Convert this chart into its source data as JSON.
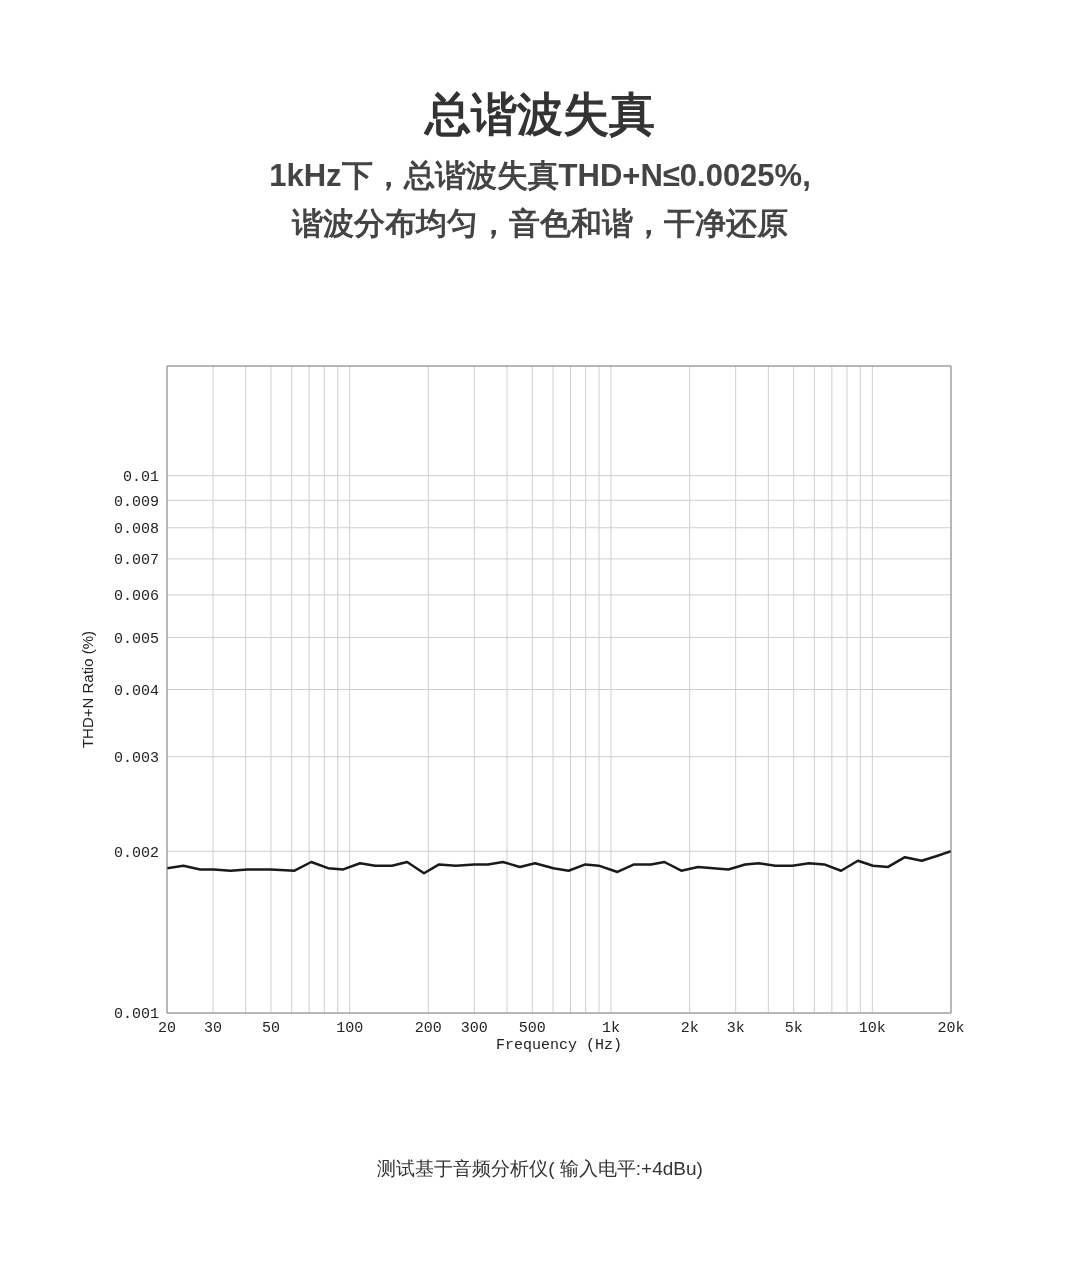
{
  "chart_data": {
    "type": "line",
    "title": "总谐波失真",
    "subtitle": "1kHz下，总谐波失真THD+N≤0.0025%,\n谐波分布均匀，音色和谐，干净还原",
    "xlabel": "Frequency (Hz)",
    "ylabel": "THD+N Ratio (%)",
    "log": "xy",
    "grid": true,
    "legend": false,
    "marker": "none",
    "line_style": "solid",
    "x": [
      20,
      23.1,
      26.8,
      30.2,
      35.0,
      40.6,
      50.0,
      61.5,
      71.3,
      82.7,
      94.5,
      109.6,
      125.3,
      145.2,
      165.9,
      192.5,
      219.9,
      255,
      300,
      338,
      386,
      448,
      512,
      602,
      688,
      798,
      898,
      1058,
      1226,
      1424,
      1601,
      1858,
      2154,
      2462,
      2812,
      3260,
      3671,
      4257,
      4942,
      5726,
      6546,
      7590,
      8806,
      10056,
      11490,
      13325,
      15456,
      17660,
      20000
    ],
    "series": [
      {
        "color": "#1a1a1a",
        "values": [
          0.00186,
          0.00188,
          0.00185,
          0.00185,
          0.00184,
          0.00185,
          0.00185,
          0.00184,
          0.00191,
          0.00186,
          0.00185,
          0.0019,
          0.00188,
          0.00188,
          0.00191,
          0.00182,
          0.00189,
          0.00188,
          0.00189,
          0.00189,
          0.00191,
          0.00187,
          0.0019,
          0.00186,
          0.00184,
          0.00189,
          0.00188,
          0.00183,
          0.00189,
          0.00189,
          0.00191,
          0.00184,
          0.00187,
          0.00186,
          0.00185,
          0.00189,
          0.0019,
          0.00188,
          0.00188,
          0.0019,
          0.00189,
          0.00184,
          0.00192,
          0.00188,
          0.00187,
          0.00195,
          0.00192,
          0.00196,
          0.002
        ]
      }
    ],
    "xlim": [
      20,
      20000
    ],
    "ylim": [
      0.001,
      0.016
    ],
    "xticks": [
      20,
      30,
      {
        "value": 40,
        "label": null
      },
      50,
      {
        "value": 60,
        "label": null
      },
      {
        "value": 70,
        "label": null
      },
      {
        "value": 80,
        "label": null
      },
      {
        "value": 90,
        "label": null
      },
      100,
      200,
      300,
      {
        "value": 400,
        "label": null
      },
      500,
      {
        "value": 600,
        "label": null
      },
      {
        "value": 700,
        "label": null
      },
      {
        "value": 800,
        "label": null
      },
      {
        "value": 900,
        "label": null
      },
      {
        "value": 1000,
        "label": "1k"
      },
      {
        "value": 2000,
        "label": "2k"
      },
      {
        "value": 3000,
        "label": "3k"
      },
      {
        "value": 4000,
        "label": null
      },
      {
        "value": 5000,
        "label": "5k"
      },
      {
        "value": 6000,
        "label": null
      },
      {
        "value": 7000,
        "label": null
      },
      {
        "value": 8000,
        "label": null
      },
      {
        "value": 9000,
        "label": null
      },
      {
        "value": 10000,
        "label": "10k"
      },
      {
        "value": 20000,
        "label": "20k"
      }
    ],
    "yticks": [
      0.001,
      0.002,
      0.003,
      0.004,
      0.005,
      0.006,
      0.007,
      0.008,
      0.009,
      0.01
    ],
    "annotations": [
      "测试基于音频分析仪( 输入电平:+4dBu)"
    ]
  }
}
